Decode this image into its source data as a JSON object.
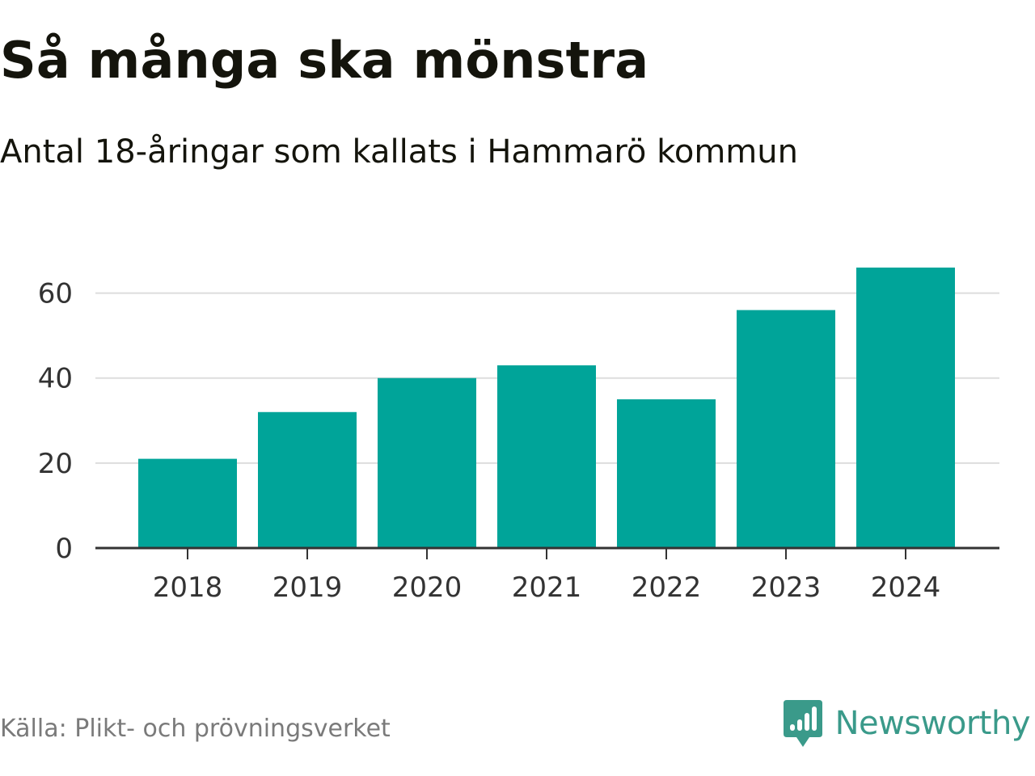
{
  "title": "Så många ska mönstra",
  "subtitle": "Antal 18-åringar som kallats i Hammarö kommun",
  "source": "Källa: Plikt- och prövningsverket",
  "brand": "Newsworthy",
  "brand_icon": "bar-chart-speech-bubble-icon",
  "colors": {
    "bar": "#00a499",
    "grid": "#dddddd",
    "axis": "#333333",
    "brand": "#3a9a8a"
  },
  "chart_data": {
    "type": "bar",
    "title": "Så många ska mönstra",
    "subtitle": "Antal 18-åringar som kallats i Hammarö kommun",
    "xlabel": "",
    "ylabel": "",
    "categories": [
      "2018",
      "2019",
      "2020",
      "2021",
      "2022",
      "2023",
      "2024"
    ],
    "values": [
      21,
      32,
      40,
      43,
      35,
      56,
      66
    ],
    "ylim": [
      0,
      70
    ],
    "yticks": [
      0,
      20,
      40,
      60
    ],
    "grid": true,
    "legend": "none"
  }
}
